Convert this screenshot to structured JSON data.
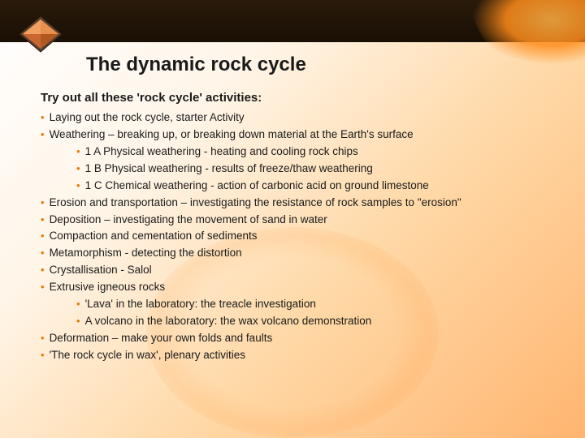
{
  "colors": {
    "bullet": "#e07b00",
    "text": "#1a1a1a",
    "header_bg": "#1a0f05",
    "bg_grad_start": "#ffffff",
    "bg_grad_end": "#ffb570"
  },
  "title": "The dynamic rock cycle",
  "subtitle": "Try out all these 'rock cycle' activities:",
  "bullets": [
    {
      "level": 0,
      "text": "Laying out the rock cycle, starter Activity"
    },
    {
      "level": 0,
      "text": "Weathering – breaking up, or breaking down material at the Earth's surface"
    },
    {
      "level": 1,
      "text": "1 A Physical weathering - heating and cooling rock chips"
    },
    {
      "level": 1,
      "text": "1 B Physical weathering - results of freeze/thaw weathering"
    },
    {
      "level": 1,
      "text": "1 C Chemical weathering - action of carbonic acid on ground limestone"
    },
    {
      "level": 0,
      "text": "Erosion and transportation – investigating the resistance of rock samples to \"erosion\""
    },
    {
      "level": 0,
      "text": "Deposition – investigating the movement of sand in water"
    },
    {
      "level": 0,
      "text": "Compaction and cementation of sediments"
    },
    {
      "level": 0,
      "text": "Metamorphism - detecting the distortion"
    },
    {
      "level": 0,
      "text": "Crystallisation - Salol"
    },
    {
      "level": 0,
      "text": "Extrusive igneous rocks"
    },
    {
      "level": 1,
      "text": "'Lava' in the laboratory: the treacle investigation"
    },
    {
      "level": 1,
      "text": "A volcano in the laboratory: the wax volcano demonstration"
    },
    {
      "level": 0,
      "text": "Deformation – make your own folds and faults"
    },
    {
      "level": 0,
      "text": "'The rock cycle in wax', plenary activities"
    }
  ]
}
